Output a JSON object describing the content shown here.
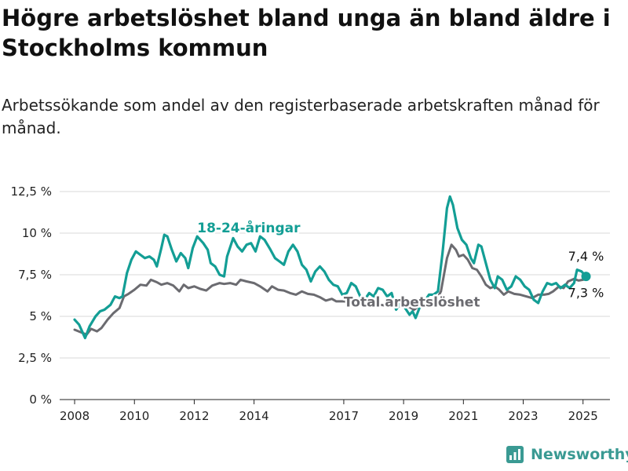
{
  "header": {
    "title": "Högre arbetslöshet bland unga än bland äldre i Stockholms kommun",
    "subtitle": "Arbetssökande som andel av den registerbaserade arbetskraften månad för månad."
  },
  "brand": {
    "name": "Newsworthy",
    "icon": "bar-chart-logo-icon",
    "color": "#3a9a93"
  },
  "colors": {
    "youth": "#139e95",
    "total": "#6b6b70",
    "grid": "#d9d9d9",
    "axis": "#222222"
  },
  "chart_data": {
    "type": "line",
    "title": "Högre arbetslöshet bland unga än bland äldre i Stockholms kommun",
    "subtitle": "Arbetssökande som andel av den registerbaserade arbetskraften månad för månad.",
    "ylim": [
      0,
      12.5
    ],
    "xlim": [
      2007.5,
      2025.9
    ],
    "y_ticks": [
      0,
      2.5,
      5,
      7.5,
      10,
      12.5
    ],
    "y_tick_labels": [
      "0 %",
      "2,5 %",
      "5 %",
      "7,5 %",
      "10 %",
      "12,5 %"
    ],
    "x_ticks": [
      2008,
      2010,
      2012,
      2014,
      2017,
      2019,
      2021,
      2023,
      2025
    ],
    "x_tick_labels": [
      "2008",
      "2010",
      "2012",
      "2014",
      "2017",
      "2019",
      "2021",
      "2023",
      "2025"
    ],
    "grid": true,
    "series": [
      {
        "name": "Total arbetslöshet",
        "color": "#6b6b70",
        "points": [
          [
            2008.0,
            4.2
          ],
          [
            2008.2,
            4.05
          ],
          [
            2008.4,
            3.9
          ],
          [
            2008.55,
            4.25
          ],
          [
            2008.75,
            4.1
          ],
          [
            2008.9,
            4.3
          ],
          [
            2009.1,
            4.8
          ],
          [
            2009.3,
            5.2
          ],
          [
            2009.5,
            5.5
          ],
          [
            2009.65,
            6.2
          ],
          [
            2009.8,
            6.35
          ],
          [
            2010.0,
            6.6
          ],
          [
            2010.2,
            6.9
          ],
          [
            2010.4,
            6.85
          ],
          [
            2010.55,
            7.2
          ],
          [
            2010.75,
            7.05
          ],
          [
            2010.9,
            6.9
          ],
          [
            2011.1,
            7.0
          ],
          [
            2011.3,
            6.85
          ],
          [
            2011.5,
            6.5
          ],
          [
            2011.65,
            6.9
          ],
          [
            2011.8,
            6.7
          ],
          [
            2012.0,
            6.8
          ],
          [
            2012.2,
            6.65
          ],
          [
            2012.4,
            6.55
          ],
          [
            2012.6,
            6.85
          ],
          [
            2012.85,
            7.0
          ],
          [
            2013.0,
            6.95
          ],
          [
            2013.2,
            7.0
          ],
          [
            2013.4,
            6.9
          ],
          [
            2013.55,
            7.2
          ],
          [
            2013.75,
            7.1
          ],
          [
            2014.0,
            7.0
          ],
          [
            2014.2,
            6.8
          ],
          [
            2014.45,
            6.5
          ],
          [
            2014.6,
            6.8
          ],
          [
            2014.8,
            6.6
          ],
          [
            2015.0,
            6.55
          ],
          [
            2015.2,
            6.4
          ],
          [
            2015.4,
            6.3
          ],
          [
            2015.6,
            6.5
          ],
          [
            2015.8,
            6.35
          ],
          [
            2016.0,
            6.3
          ],
          [
            2016.2,
            6.15
          ],
          [
            2016.4,
            5.95
          ],
          [
            2016.6,
            6.05
          ],
          [
            2016.75,
            5.9
          ],
          [
            2017.0,
            5.9
          ],
          [
            2017.2,
            5.85
          ],
          [
            2017.4,
            5.8
          ],
          [
            2017.6,
            5.9
          ],
          [
            2017.8,
            5.8
          ],
          [
            2018.0,
            5.75
          ],
          [
            2018.2,
            5.7
          ],
          [
            2018.4,
            5.65
          ],
          [
            2018.6,
            5.7
          ],
          [
            2018.8,
            5.6
          ],
          [
            2019.0,
            5.6
          ],
          [
            2019.2,
            5.55
          ],
          [
            2019.35,
            5.4
          ],
          [
            2019.5,
            5.6
          ],
          [
            2019.7,
            5.7
          ],
          [
            2019.9,
            5.9
          ],
          [
            2020.1,
            6.0
          ],
          [
            2020.25,
            6.5
          ],
          [
            2020.45,
            8.5
          ],
          [
            2020.6,
            9.3
          ],
          [
            2020.75,
            9.0
          ],
          [
            2020.85,
            8.6
          ],
          [
            2021.0,
            8.7
          ],
          [
            2021.15,
            8.4
          ],
          [
            2021.3,
            7.9
          ],
          [
            2021.45,
            7.8
          ],
          [
            2021.6,
            7.4
          ],
          [
            2021.75,
            6.9
          ],
          [
            2021.9,
            6.7
          ],
          [
            2022.05,
            6.8
          ],
          [
            2022.2,
            6.6
          ],
          [
            2022.35,
            6.3
          ],
          [
            2022.5,
            6.5
          ],
          [
            2022.7,
            6.35
          ],
          [
            2022.9,
            6.3
          ],
          [
            2023.1,
            6.2
          ],
          [
            2023.3,
            6.1
          ],
          [
            2023.5,
            6.3
          ],
          [
            2023.7,
            6.3
          ],
          [
            2023.85,
            6.35
          ],
          [
            2024.0,
            6.5
          ],
          [
            2024.2,
            6.8
          ],
          [
            2024.35,
            6.7
          ],
          [
            2024.5,
            7.1
          ],
          [
            2024.7,
            7.25
          ],
          [
            2024.85,
            7.15
          ],
          [
            2025.0,
            7.2
          ],
          [
            2025.1,
            7.3
          ]
        ]
      },
      {
        "name": "18-24-åringar",
        "color": "#139e95",
        "points": [
          [
            2008.0,
            4.8
          ],
          [
            2008.15,
            4.5
          ],
          [
            2008.3,
            3.9
          ],
          [
            2008.35,
            3.7
          ],
          [
            2008.5,
            4.4
          ],
          [
            2008.7,
            5.0
          ],
          [
            2008.85,
            5.3
          ],
          [
            2009.0,
            5.4
          ],
          [
            2009.2,
            5.7
          ],
          [
            2009.35,
            6.2
          ],
          [
            2009.5,
            6.1
          ],
          [
            2009.6,
            6.2
          ],
          [
            2009.75,
            7.6
          ],
          [
            2009.9,
            8.4
          ],
          [
            2010.05,
            8.9
          ],
          [
            2010.2,
            8.7
          ],
          [
            2010.35,
            8.5
          ],
          [
            2010.5,
            8.6
          ],
          [
            2010.65,
            8.4
          ],
          [
            2010.75,
            8.0
          ],
          [
            2010.9,
            9.1
          ],
          [
            2011.0,
            9.9
          ],
          [
            2011.1,
            9.8
          ],
          [
            2011.25,
            9.0
          ],
          [
            2011.4,
            8.3
          ],
          [
            2011.55,
            8.8
          ],
          [
            2011.7,
            8.5
          ],
          [
            2011.8,
            7.9
          ],
          [
            2011.95,
            9.1
          ],
          [
            2012.1,
            9.8
          ],
          [
            2012.3,
            9.4
          ],
          [
            2012.45,
            9.0
          ],
          [
            2012.55,
            8.2
          ],
          [
            2012.7,
            8.0
          ],
          [
            2012.85,
            7.5
          ],
          [
            2013.0,
            7.4
          ],
          [
            2013.1,
            8.6
          ],
          [
            2013.3,
            9.7
          ],
          [
            2013.45,
            9.2
          ],
          [
            2013.6,
            8.9
          ],
          [
            2013.75,
            9.3
          ],
          [
            2013.9,
            9.4
          ],
          [
            2014.05,
            8.9
          ],
          [
            2014.2,
            9.8
          ],
          [
            2014.35,
            9.6
          ],
          [
            2014.55,
            9.0
          ],
          [
            2014.7,
            8.5
          ],
          [
            2014.85,
            8.3
          ],
          [
            2015.0,
            8.1
          ],
          [
            2015.15,
            8.9
          ],
          [
            2015.3,
            9.3
          ],
          [
            2015.45,
            8.9
          ],
          [
            2015.6,
            8.1
          ],
          [
            2015.75,
            7.8
          ],
          [
            2015.9,
            7.1
          ],
          [
            2016.05,
            7.7
          ],
          [
            2016.2,
            8.0
          ],
          [
            2016.35,
            7.7
          ],
          [
            2016.5,
            7.2
          ],
          [
            2016.65,
            6.9
          ],
          [
            2016.8,
            6.8
          ],
          [
            2016.95,
            6.3
          ],
          [
            2017.1,
            6.4
          ],
          [
            2017.25,
            7.0
          ],
          [
            2017.4,
            6.8
          ],
          [
            2017.55,
            6.2
          ],
          [
            2017.7,
            6.0
          ],
          [
            2017.85,
            6.4
          ],
          [
            2018.0,
            6.2
          ],
          [
            2018.15,
            6.7
          ],
          [
            2018.3,
            6.6
          ],
          [
            2018.45,
            6.2
          ],
          [
            2018.6,
            6.4
          ],
          [
            2018.75,
            5.4
          ],
          [
            2018.9,
            5.8
          ],
          [
            2019.05,
            5.5
          ],
          [
            2019.2,
            5.1
          ],
          [
            2019.3,
            5.3
          ],
          [
            2019.4,
            4.9
          ],
          [
            2019.55,
            5.6
          ],
          [
            2019.7,
            5.9
          ],
          [
            2019.85,
            6.3
          ],
          [
            2020.0,
            6.3
          ],
          [
            2020.15,
            6.5
          ],
          [
            2020.3,
            8.8
          ],
          [
            2020.45,
            11.5
          ],
          [
            2020.55,
            12.2
          ],
          [
            2020.65,
            11.7
          ],
          [
            2020.8,
            10.3
          ],
          [
            2020.95,
            9.6
          ],
          [
            2021.1,
            9.3
          ],
          [
            2021.25,
            8.5
          ],
          [
            2021.35,
            8.2
          ],
          [
            2021.5,
            9.3
          ],
          [
            2021.6,
            9.2
          ],
          [
            2021.75,
            8.2
          ],
          [
            2021.9,
            7.2
          ],
          [
            2022.05,
            6.7
          ],
          [
            2022.15,
            7.4
          ],
          [
            2022.3,
            7.2
          ],
          [
            2022.45,
            6.6
          ],
          [
            2022.6,
            6.8
          ],
          [
            2022.75,
            7.4
          ],
          [
            2022.9,
            7.2
          ],
          [
            2023.05,
            6.8
          ],
          [
            2023.2,
            6.6
          ],
          [
            2023.35,
            6.0
          ],
          [
            2023.5,
            5.8
          ],
          [
            2023.65,
            6.5
          ],
          [
            2023.8,
            7.0
          ],
          [
            2023.95,
            6.9
          ],
          [
            2024.1,
            7.0
          ],
          [
            2024.25,
            6.7
          ],
          [
            2024.4,
            6.9
          ],
          [
            2024.55,
            6.7
          ],
          [
            2024.7,
            7.0
          ],
          [
            2024.8,
            7.8
          ],
          [
            2024.95,
            7.7
          ],
          [
            2025.1,
            7.4
          ]
        ]
      }
    ],
    "labels": {
      "youth": "18-24-åringar",
      "total": "Total arbetslöshet",
      "youth_last": "7,4 %",
      "total_last": "7,3 %"
    }
  }
}
